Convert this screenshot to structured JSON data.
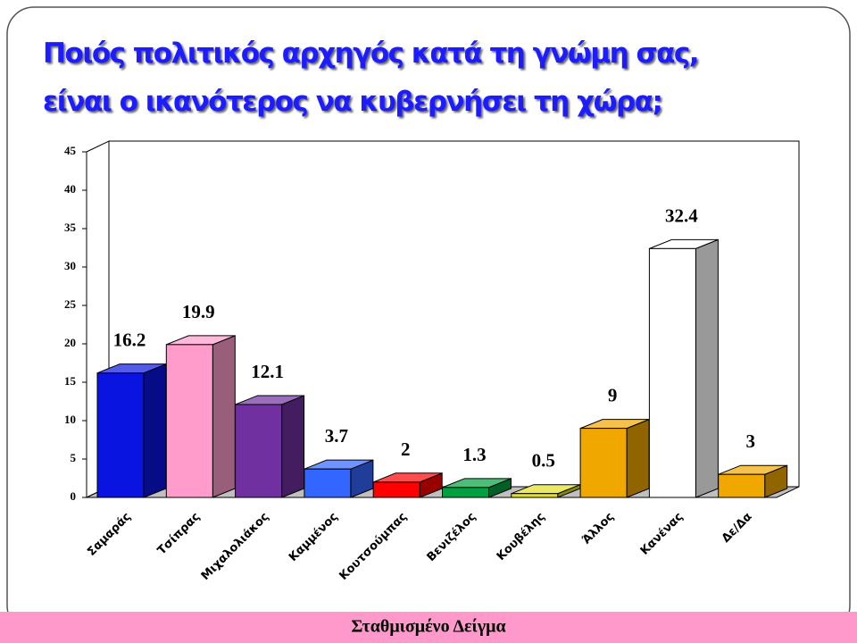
{
  "chart_data": {
    "type": "bar3d",
    "title": [
      "Ποιός πολιτικός αρχηγός κατά τη γνώμη σας,",
      "είναι ο ικανότερος να κυβερνήσει τη χώρα;"
    ],
    "categories": [
      "Σαμαράς",
      "Τσίπρας",
      "Μιχαλολιάκος",
      "Καμμένος",
      "Κουτσούμπας",
      "Βενιζέλος",
      "Κουβέλης",
      "Άλλος",
      "Κανένας",
      "Δε/Δα"
    ],
    "values": [
      16.2,
      19.9,
      12.1,
      3.7,
      2,
      1.3,
      0.5,
      9,
      32.4,
      3
    ],
    "colors": [
      "#0a14e0",
      "#ff9ccc",
      "#7030a0",
      "#3366ff",
      "#ff0000",
      "#00a040",
      "#e0e020",
      "#f0a800",
      "#ffffff",
      "#f0a800"
    ],
    "ylim": [
      0,
      45
    ],
    "yticks": [
      0,
      5,
      10,
      15,
      20,
      25,
      30,
      35,
      40,
      45
    ],
    "footer": "Σταθμισμένο Δείγμα"
  }
}
